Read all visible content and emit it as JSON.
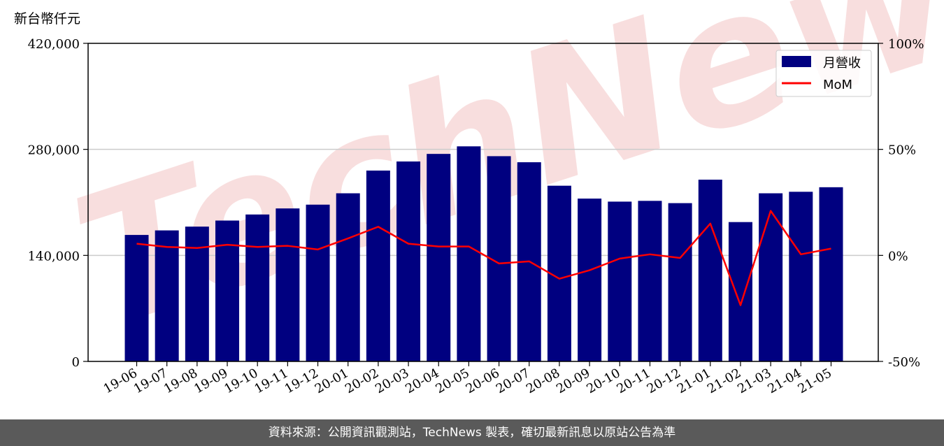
{
  "watermark": "TechNews",
  "footer": {
    "source": "資料來源：公開資訊觀測站，TechNews 製表，確切最新訊息以原站公告為準"
  },
  "chart_data": {
    "type": "bar",
    "y_unit_label": "新台幣仟元",
    "categories": [
      "19-06",
      "19-07",
      "19-08",
      "19-09",
      "19-10",
      "19-11",
      "19-12",
      "20-01",
      "20-02",
      "20-03",
      "20-04",
      "20-05",
      "20-06",
      "20-07",
      "20-08",
      "20-09",
      "20-10",
      "20-11",
      "20-12",
      "21-01",
      "21-02",
      "21-03",
      "21-04",
      "21-05"
    ],
    "series": [
      {
        "name": "月營收",
        "type": "bar",
        "axis": "left",
        "color": "#000080",
        "values": [
          167000,
          173000,
          178000,
          186000,
          194000,
          202000,
          207000,
          222000,
          252000,
          264000,
          274000,
          284000,
          271000,
          263000,
          232000,
          215000,
          211000,
          212000,
          209000,
          240000,
          184000,
          222000,
          224000,
          230000
        ]
      },
      {
        "name": "MoM",
        "type": "line",
        "axis": "right",
        "color": "#ff0000",
        "values": [
          5.5,
          4,
          3.5,
          5,
          4,
          4.5,
          2.8,
          8,
          13.5,
          5.5,
          4.2,
          4.2,
          -3.8,
          -2.8,
          -11,
          -7,
          -1.5,
          0.5,
          -1.2,
          15,
          -23.5,
          21,
          0.5,
          3.2
        ]
      }
    ],
    "left_axis": {
      "ylim": [
        0,
        420000
      ],
      "ticks": [
        0,
        140000,
        280000,
        420000
      ],
      "tick_labels": [
        "0",
        "140,000",
        "280,000",
        "420,000"
      ]
    },
    "right_axis": {
      "ylim": [
        -50,
        100
      ],
      "ticks": [
        -50,
        0,
        50,
        100
      ],
      "tick_labels": [
        "-50%",
        "0%",
        "50%",
        "100%"
      ]
    },
    "grid": "horizontal",
    "legend_position": "top-right"
  },
  "colors": {
    "bar": "#000080",
    "line": "#ff0000",
    "grid": "#cccccc",
    "footer_bg": "#5a5a5a",
    "watermark": "#f4c9c9"
  }
}
